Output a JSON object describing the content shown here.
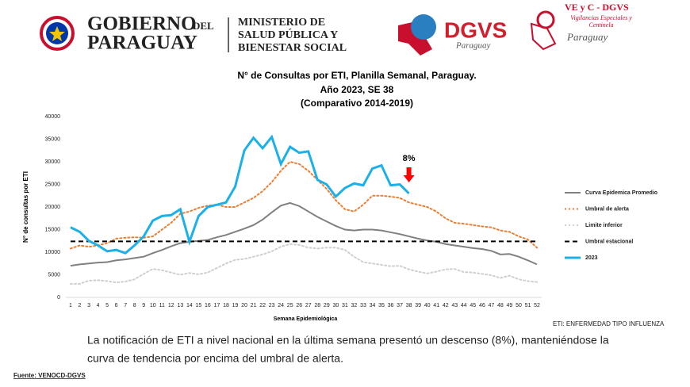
{
  "header": {
    "gov": [
      "GOBIERNO",
      "DEL",
      "PARAGUAY"
    ],
    "ministry": [
      "MINISTERIO DE",
      "SALUD PÚBLICA Y",
      "BIENESTAR SOCIAL"
    ],
    "dgvs": [
      "DGVS",
      "Paraguay"
    ],
    "vec": [
      "VE y C - DGVS",
      "Vigilancias Especiales y",
      "Centinela",
      "Paraguay"
    ]
  },
  "chart_data": {
    "type": "line",
    "title": "N° de Consultas por ETI, Planilla Semanal, Paraguay.",
    "subtitle": [
      "Año 2023, SE 38",
      "(Comparativo 2014-2019)"
    ],
    "x_label": "Semana Epidemiológica",
    "y_label": "N° de consultas por ETI",
    "x": [
      1,
      2,
      3,
      4,
      5,
      6,
      7,
      8,
      9,
      10,
      11,
      12,
      13,
      14,
      15,
      16,
      17,
      18,
      19,
      20,
      21,
      22,
      23,
      24,
      25,
      26,
      27,
      28,
      29,
      30,
      31,
      32,
      33,
      34,
      35,
      36,
      37,
      38,
      39,
      40,
      41,
      42,
      43,
      44,
      45,
      46,
      47,
      48,
      49,
      50,
      51,
      52
    ],
    "xlim": [
      0.5,
      52.5
    ],
    "xticks": [
      1,
      2,
      3,
      4,
      5,
      6,
      7,
      8,
      9,
      10,
      11,
      12,
      13,
      14,
      15,
      16,
      17,
      18,
      19,
      20,
      21,
      22,
      23,
      24,
      25,
      26,
      27,
      28,
      29,
      30,
      31,
      32,
      33,
      34,
      35,
      36,
      37,
      38,
      39,
      40,
      41,
      42,
      43,
      44,
      45,
      46,
      47,
      48,
      49,
      50,
      51,
      52
    ],
    "ylim": [
      0,
      40000
    ],
    "yticks": [
      0,
      5000,
      10000,
      15000,
      20000,
      25000,
      30000,
      35000,
      40000
    ],
    "series": [
      {
        "name": "Curva Epidemica Promedio",
        "color": "#808080",
        "style": "solid",
        "width": 2,
        "values": [
          7000,
          7300,
          7500,
          7700,
          7800,
          8200,
          8400,
          8700,
          9000,
          9800,
          10500,
          11300,
          12000,
          12300,
          12500,
          12700,
          13300,
          13800,
          14500,
          15200,
          16000,
          17200,
          18800,
          20300,
          20900,
          20200,
          19000,
          17800,
          16800,
          15800,
          15000,
          14800,
          15000,
          15000,
          14800,
          14400,
          14000,
          13500,
          13000,
          12600,
          12300,
          11800,
          11500,
          11200,
          10900,
          10700,
          10300,
          9500,
          9600,
          9000,
          8200,
          7300
        ]
      },
      {
        "name": "Umbral de alerta",
        "color": "#ed7d31",
        "style": "dotted",
        "width": 2,
        "values": [
          10800,
          11500,
          11200,
          11500,
          12000,
          13000,
          13200,
          13300,
          13200,
          13500,
          15000,
          16500,
          18500,
          19000,
          19800,
          20300,
          20500,
          20000,
          20000,
          21000,
          22000,
          23500,
          25500,
          28000,
          30000,
          29500,
          28000,
          26000,
          24000,
          21500,
          19500,
          19000,
          20500,
          22500,
          22500,
          22300,
          22000,
          21000,
          20500,
          20000,
          19000,
          17500,
          16500,
          16300,
          16000,
          15700,
          15500,
          14800,
          14500,
          13500,
          12800,
          11000
        ]
      },
      {
        "name": "Limite inferior",
        "color": "#cfcfcf",
        "style": "dotted",
        "width": 2,
        "values": [
          3000,
          3000,
          3700,
          3800,
          3600,
          3300,
          3500,
          4000,
          5200,
          6300,
          6000,
          5500,
          5000,
          5400,
          5100,
          5500,
          6500,
          7500,
          8300,
          8500,
          9000,
          9500,
          10200,
          11200,
          11800,
          11600,
          11000,
          10800,
          11000,
          11000,
          10500,
          9000,
          7800,
          7500,
          7200,
          6900,
          7000,
          6200,
          5700,
          5300,
          5700,
          6200,
          6300,
          5600,
          5500,
          5200,
          4900,
          4300,
          4800,
          4000,
          3600,
          3400
        ]
      },
      {
        "name": "Umbral estacional",
        "color": "#000000",
        "style": "dashed",
        "width": 2,
        "values": [
          12400,
          12400,
          12400,
          12400,
          12400,
          12400,
          12400,
          12400,
          12400,
          12400,
          12400,
          12400,
          12400,
          12400,
          12400,
          12400,
          12400,
          12400,
          12400,
          12400,
          12400,
          12400,
          12400,
          12400,
          12400,
          12400,
          12400,
          12400,
          12400,
          12400,
          12400,
          12400,
          12400,
          12400,
          12400,
          12400,
          12400,
          12400,
          12400,
          12400,
          12400,
          12400,
          12400,
          12400,
          12400,
          12400,
          12400,
          12400,
          12400,
          12400,
          12400,
          12400
        ]
      },
      {
        "name": "2023",
        "color": "#1cb0e8",
        "style": "solid",
        "width": 3,
        "values": [
          15500,
          14500,
          12500,
          11500,
          10200,
          10500,
          9800,
          11500,
          13500,
          17000,
          18000,
          18200,
          19500,
          12300,
          18000,
          20000,
          20500,
          21000,
          24500,
          32500,
          35300,
          33000,
          35500,
          29500,
          33300,
          32000,
          32300,
          26000,
          25000,
          22300,
          24200,
          25200,
          24800,
          28500,
          29200,
          24800,
          25000,
          23000,
          null,
          null,
          null,
          null,
          null,
          null,
          null,
          null,
          null,
          null,
          null,
          null,
          null,
          null
        ]
      }
    ],
    "annotation": {
      "text": "8%",
      "x": 38,
      "color": "#ff0000"
    }
  },
  "footer": {
    "note": "ETI: ENFERMEDAD TIPO INFLUENZA",
    "text": [
      "La notificación de ETI a nivel nacional en la última semana presentó un descenso (8%), manteniéndose la",
      "curva de tendencia  por encima del umbral de alerta."
    ],
    "source": "Fuente: VENOCD-DGVS"
  }
}
